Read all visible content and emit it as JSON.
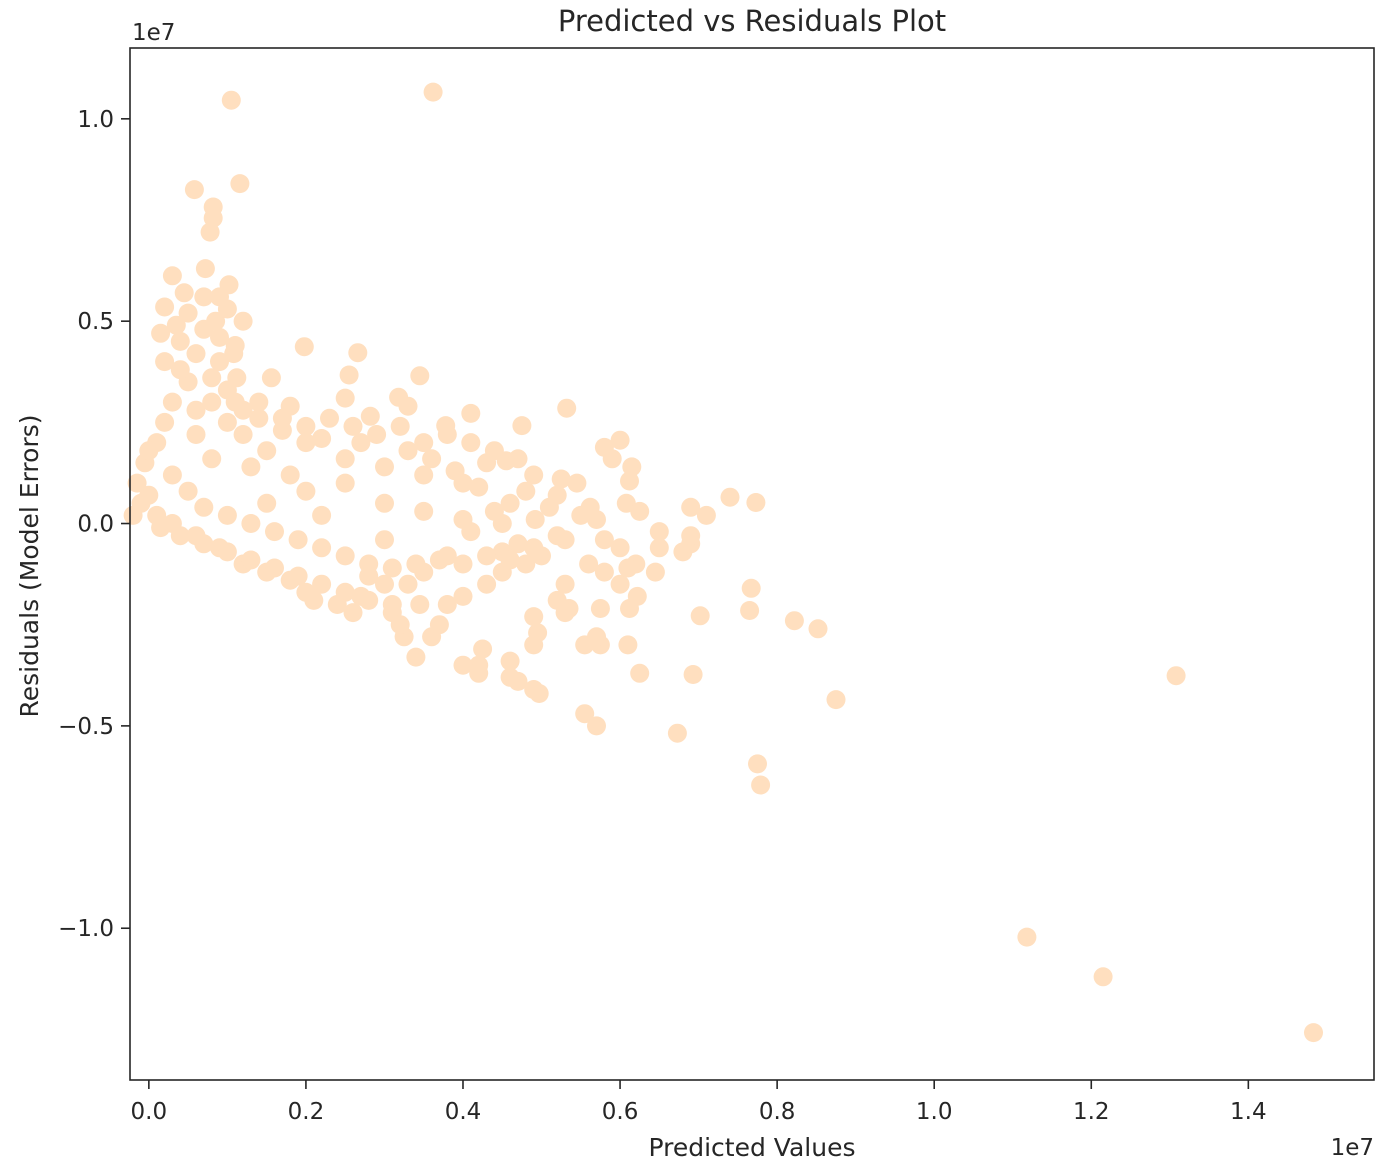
{
  "chart_data": {
    "type": "scatter",
    "title": "Predicted vs Residuals Plot",
    "xlabel": "Predicted Values",
    "ylabel": "Residuals (Model Errors)",
    "x_offset_label": "1e7",
    "y_offset_label": "1e7",
    "xlim": [
      -0.024,
      1.56
    ],
    "ylim": [
      -1.375,
      1.175
    ],
    "x_ticks": [
      0.0,
      0.2,
      0.4,
      0.6,
      0.8,
      1.0,
      1.2,
      1.4
    ],
    "x_tick_labels": [
      "0.0",
      "0.2",
      "0.4",
      "0.6",
      "0.8",
      "1.0",
      "1.2",
      "1.4"
    ],
    "y_ticks": [
      1.0,
      0.5,
      0.0,
      -0.5,
      -1.0
    ],
    "y_tick_labels": [
      "1.0",
      "0.5",
      "0.0",
      "−0.5",
      "−1.0"
    ],
    "grid": false,
    "marker_color": "#ffdfbf",
    "series": [
      {
        "name": "",
        "points": [
          [
            0.105,
            1.046
          ],
          [
            0.362,
            1.066
          ],
          [
            0.058,
            0.825
          ],
          [
            0.116,
            0.84
          ],
          [
            0.082,
            0.782
          ],
          [
            0.082,
            0.755
          ],
          [
            0.078,
            0.72
          ],
          [
            0.03,
            0.612
          ],
          [
            0.072,
            0.63
          ],
          [
            0.102,
            0.59
          ],
          [
            0.09,
            0.56
          ],
          [
            0.02,
            0.535
          ],
          [
            0.12,
            0.5
          ],
          [
            0.035,
            0.49
          ],
          [
            0.198,
            0.437
          ],
          [
            0.266,
            0.422
          ],
          [
            0.255,
            0.367
          ],
          [
            0.156,
            0.36
          ],
          [
            0.345,
            0.365
          ],
          [
            0.108,
            0.42
          ],
          [
            0.112,
            0.36
          ],
          [
            0.25,
            0.31
          ],
          [
            0.318,
            0.312
          ],
          [
            0.33,
            0.29
          ],
          [
            0.282,
            0.265
          ],
          [
            0.41,
            0.272
          ],
          [
            0.532,
            0.285
          ],
          [
            0.475,
            0.242
          ],
          [
            0.378,
            0.242
          ],
          [
            0.18,
            0.29
          ],
          [
            0.6,
            0.206
          ],
          [
            0.58,
            0.188
          ],
          [
            0.455,
            0.155
          ],
          [
            0.43,
            0.15
          ],
          [
            0.59,
            0.16
          ],
          [
            0.615,
            0.14
          ],
          [
            0.525,
            0.11
          ],
          [
            0.545,
            0.1
          ],
          [
            0.612,
            0.105
          ],
          [
            0.608,
            0.05
          ],
          [
            0.625,
            0.03
          ],
          [
            0.74,
            0.065
          ],
          [
            0.773,
            0.052
          ],
          [
            0.69,
            0.04
          ],
          [
            0.71,
            0.02
          ],
          [
            0.562,
            0.04
          ],
          [
            0.57,
            0.01
          ],
          [
            0.492,
            0.01
          ],
          [
            0.53,
            -0.04
          ],
          [
            0.65,
            -0.02
          ],
          [
            0.65,
            -0.06
          ],
          [
            0.68,
            -0.07
          ],
          [
            0.69,
            -0.05
          ],
          [
            0.69,
            -0.03
          ],
          [
            0.58,
            -0.04
          ],
          [
            0.6,
            -0.06
          ],
          [
            0.62,
            -0.1
          ],
          [
            0.645,
            -0.12
          ],
          [
            0.6,
            -0.15
          ],
          [
            0.61,
            -0.11
          ],
          [
            0.58,
            -0.12
          ],
          [
            0.56,
            -0.1
          ],
          [
            0.53,
            -0.15
          ],
          [
            0.52,
            -0.19
          ],
          [
            0.535,
            -0.21
          ],
          [
            0.575,
            -0.21
          ],
          [
            0.612,
            -0.21
          ],
          [
            0.622,
            -0.18
          ],
          [
            0.53,
            -0.22
          ],
          [
            0.575,
            -0.3
          ],
          [
            0.555,
            -0.3
          ],
          [
            0.57,
            -0.28
          ],
          [
            0.61,
            -0.3
          ],
          [
            0.625,
            -0.37
          ],
          [
            0.49,
            -0.23
          ],
          [
            0.495,
            -0.27
          ],
          [
            0.49,
            -0.3
          ],
          [
            0.46,
            -0.34
          ],
          [
            0.425,
            -0.31
          ],
          [
            0.42,
            -0.35
          ],
          [
            0.4,
            -0.35
          ],
          [
            0.42,
            -0.37
          ],
          [
            0.46,
            -0.38
          ],
          [
            0.47,
            -0.39
          ],
          [
            0.49,
            -0.41
          ],
          [
            0.497,
            -0.42
          ],
          [
            0.555,
            -0.47
          ],
          [
            0.57,
            -0.5
          ],
          [
            0.673,
            -0.518
          ],
          [
            0.693,
            -0.373
          ],
          [
            0.767,
            -0.16
          ],
          [
            0.765,
            -0.215
          ],
          [
            0.702,
            -0.228
          ],
          [
            0.822,
            -0.24
          ],
          [
            0.852,
            -0.26
          ],
          [
            0.875,
            -0.435
          ],
          [
            0.775,
            -0.594
          ],
          [
            0.779,
            -0.646
          ],
          [
            1.118,
            -1.022
          ],
          [
            1.215,
            -1.12
          ],
          [
            1.308,
            -0.376
          ],
          [
            1.483,
            -1.258
          ],
          [
            0.34,
            -0.33
          ],
          [
            0.37,
            -0.25
          ],
          [
            0.38,
            -0.2
          ],
          [
            0.345,
            -0.2
          ],
          [
            0.325,
            -0.28
          ],
          [
            0.31,
            -0.22
          ],
          [
            0.4,
            -0.18
          ],
          [
            0.43,
            -0.15
          ],
          [
            0.45,
            -0.12
          ],
          [
            0.48,
            -0.1
          ],
          [
            0.5,
            -0.08
          ],
          [
            0.47,
            -0.05
          ],
          [
            0.45,
            -0.07
          ],
          [
            0.51,
            0.04
          ],
          [
            0.46,
            0.05
          ],
          [
            0.48,
            0.08
          ],
          [
            0.4,
            0.1
          ],
          [
            0.35,
            0.12
          ],
          [
            0.3,
            0.14
          ],
          [
            0.25,
            0.16
          ],
          [
            0.2,
            0.2
          ],
          [
            0.15,
            0.18
          ],
          [
            0.12,
            0.22
          ],
          [
            0.1,
            0.25
          ],
          [
            0.08,
            0.3
          ],
          [
            0.06,
            0.28
          ],
          [
            0.05,
            0.35
          ],
          [
            0.04,
            0.38
          ],
          [
            0.09,
            0.4
          ],
          [
            0.11,
            0.3
          ],
          [
            0.14,
            0.26
          ],
          [
            0.17,
            0.23
          ],
          [
            0.22,
            0.21
          ],
          [
            0.27,
            0.2
          ],
          [
            0.33,
            0.18
          ],
          [
            0.36,
            0.16
          ],
          [
            0.39,
            0.13
          ],
          [
            0.42,
            0.09
          ],
          [
            0.44,
            0.03
          ],
          [
            0.41,
            -0.02
          ],
          [
            0.38,
            -0.08
          ],
          [
            0.35,
            -0.12
          ],
          [
            0.3,
            -0.15
          ],
          [
            0.27,
            -0.18
          ],
          [
            0.24,
            -0.2
          ],
          [
            0.21,
            -0.19
          ],
          [
            0.18,
            -0.14
          ],
          [
            0.15,
            -0.12
          ],
          [
            0.12,
            -0.1
          ],
          [
            0.09,
            -0.06
          ],
          [
            0.06,
            -0.03
          ],
          [
            0.03,
            0.0
          ],
          [
            0.01,
            0.02
          ],
          [
            -0.01,
            0.05
          ],
          [
            -0.015,
            0.1
          ],
          [
            -0.005,
            0.15
          ],
          [
            0.01,
            0.2
          ],
          [
            0.02,
            0.25
          ],
          [
            0.0,
            0.18
          ],
          [
            0.03,
            0.12
          ],
          [
            0.05,
            0.08
          ],
          [
            0.07,
            0.04
          ],
          [
            0.1,
            0.02
          ],
          [
            0.13,
            0.0
          ],
          [
            0.16,
            -0.02
          ],
          [
            0.19,
            -0.04
          ],
          [
            0.22,
            -0.06
          ],
          [
            0.25,
            -0.08
          ],
          [
            0.28,
            -0.1
          ],
          [
            0.31,
            -0.11
          ],
          [
            0.34,
            -0.1
          ],
          [
            0.37,
            -0.09
          ],
          [
            0.4,
            -0.1
          ],
          [
            0.43,
            -0.08
          ],
          [
            0.46,
            -0.09
          ],
          [
            0.49,
            -0.06
          ],
          [
            0.52,
            -0.03
          ],
          [
            0.55,
            0.02
          ],
          [
            0.52,
            0.07
          ],
          [
            0.49,
            0.12
          ],
          [
            0.47,
            0.16
          ],
          [
            0.44,
            0.18
          ],
          [
            0.41,
            0.2
          ],
          [
            0.38,
            0.22
          ],
          [
            0.35,
            0.2
          ],
          [
            0.32,
            0.24
          ],
          [
            0.29,
            0.22
          ],
          [
            0.26,
            0.24
          ],
          [
            0.23,
            0.26
          ],
          [
            0.2,
            0.24
          ],
          [
            0.17,
            0.26
          ],
          [
            0.14,
            0.3
          ],
          [
            0.12,
            0.28
          ],
          [
            0.1,
            0.33
          ],
          [
            0.08,
            0.36
          ],
          [
            0.06,
            0.42
          ],
          [
            0.04,
            0.45
          ],
          [
            0.07,
            0.48
          ],
          [
            0.09,
            0.46
          ],
          [
            0.11,
            0.44
          ],
          [
            0.05,
            0.52
          ],
          [
            0.085,
            0.5
          ],
          [
            0.1,
            0.53
          ],
          [
            0.07,
            0.56
          ],
          [
            0.045,
            0.57
          ],
          [
            0.0,
            0.07
          ],
          [
            -0.02,
            0.02
          ],
          [
            0.015,
            -0.01
          ],
          [
            0.04,
            -0.03
          ],
          [
            0.07,
            -0.05
          ],
          [
            0.1,
            -0.07
          ],
          [
            0.13,
            -0.09
          ],
          [
            0.16,
            -0.11
          ],
          [
            0.19,
            -0.13
          ],
          [
            0.22,
            -0.15
          ],
          [
            0.25,
            -0.17
          ],
          [
            0.28,
            -0.19
          ],
          [
            0.31,
            -0.2
          ],
          [
            0.2,
            -0.17
          ],
          [
            0.26,
            -0.22
          ],
          [
            0.32,
            -0.25
          ],
          [
            0.36,
            -0.28
          ],
          [
            0.28,
            -0.13
          ],
          [
            0.33,
            -0.15
          ],
          [
            0.15,
            0.05
          ],
          [
            0.2,
            0.08
          ],
          [
            0.25,
            0.1
          ],
          [
            0.3,
            0.05
          ],
          [
            0.35,
            0.03
          ],
          [
            0.4,
            0.01
          ],
          [
            0.45,
            0.0
          ],
          [
            0.3,
            -0.04
          ],
          [
            0.22,
            0.02
          ],
          [
            0.18,
            0.12
          ],
          [
            0.13,
            0.14
          ],
          [
            0.08,
            0.16
          ],
          [
            0.06,
            0.22
          ],
          [
            0.03,
            0.3
          ],
          [
            0.02,
            0.4
          ],
          [
            0.015,
            0.47
          ]
        ]
      }
    ]
  }
}
